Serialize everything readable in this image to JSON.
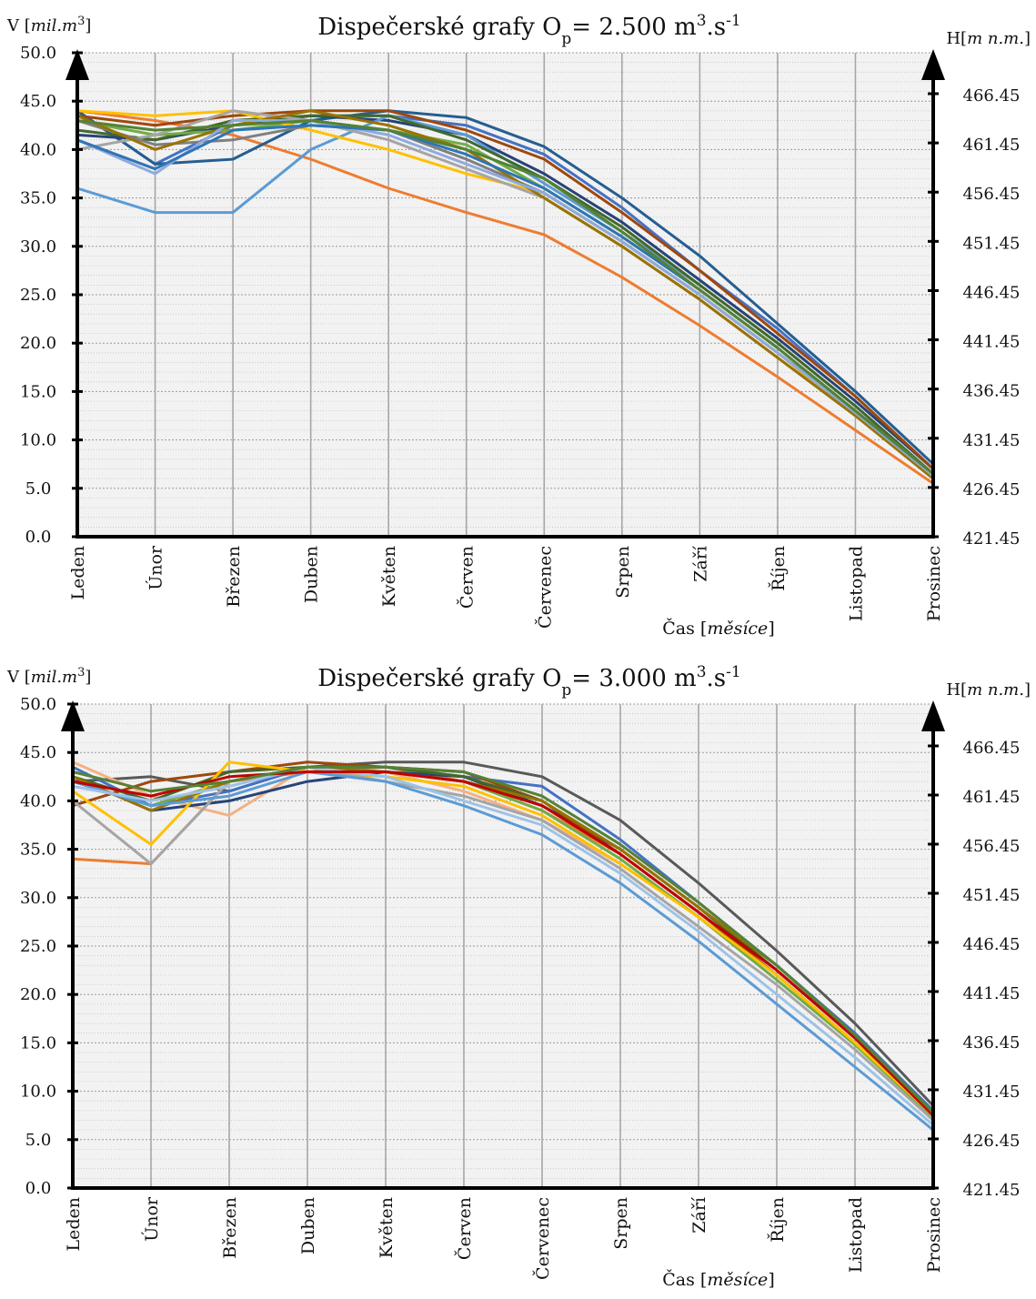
{
  "chart_data": [
    {
      "type": "line",
      "title": "Dispečerské grafy O",
      "title_subscript": "p",
      "title_suffix": "= 2.500 m",
      "title_sup1": "3",
      "title_unit2": ".s",
      "title_sup2": "-1",
      "ylabel_left": "V [",
      "ylabel_left_unit": "mil.m",
      "ylabel_left_sup": "3",
      "ylabel_left_close": "]",
      "ylabel_right": "H[",
      "ylabel_right_unit": "m n.m.",
      "ylabel_right_close": "]",
      "xlabel": "Čas [",
      "xlabel_unit": "měsíce",
      "xlabel_close": "]",
      "ylim": [
        0,
        50
      ],
      "yticks_left": [
        "0.0",
        "5.0",
        "10.0",
        "15.0",
        "20.0",
        "25.0",
        "30.0",
        "35.0",
        "40.0",
        "45.0",
        "50.0"
      ],
      "yticks_right": [
        "421.45",
        "426.45",
        "431.45",
        "436.45",
        "441.45",
        "446.45",
        "451.45",
        "456.45",
        "461.45",
        "466.45"
      ],
      "categories": [
        "Leden",
        "Únor",
        "Březen",
        "Duben",
        "Květen",
        "Červen",
        "Červenec",
        "Srpen",
        "Září",
        "Říjen",
        "Listopad",
        "Prosinec"
      ],
      "series": [
        {
          "color": "#ed7d31",
          "values": [
            44.0,
            43.0,
            41.5,
            39.0,
            36.0,
            33.5,
            31.2,
            26.8,
            21.8,
            16.5,
            11.0,
            5.5
          ]
        },
        {
          "color": "#4472c4",
          "values": [
            44.0,
            38.5,
            42.5,
            43.5,
            43.5,
            42.5,
            39.5,
            34.0,
            27.5,
            21.5,
            14.5,
            7.0
          ]
        },
        {
          "color": "#255e91",
          "values": [
            44.0,
            38.5,
            39.0,
            43.0,
            44.0,
            43.3,
            40.3,
            35.0,
            29.0,
            22.0,
            15.0,
            7.5
          ]
        },
        {
          "color": "#264478",
          "values": [
            41.5,
            41.0,
            42.5,
            43.5,
            43.0,
            41.5,
            37.5,
            32.5,
            26.5,
            20.5,
            14.0,
            7.0
          ]
        },
        {
          "color": "#5b9bd5",
          "values": [
            36.0,
            33.5,
            33.5,
            40.0,
            43.5,
            41.5,
            36.5,
            31.5,
            26.0,
            20.0,
            13.5,
            6.5
          ]
        },
        {
          "color": "#9e480e",
          "values": [
            43.5,
            42.5,
            43.5,
            44.0,
            44.0,
            42.0,
            39.0,
            33.5,
            27.5,
            21.0,
            14.5,
            7.0
          ]
        },
        {
          "color": "#43682b",
          "values": [
            42.0,
            41.0,
            43.0,
            43.5,
            43.5,
            41.0,
            37.0,
            32.0,
            26.0,
            20.0,
            13.5,
            6.5
          ]
        },
        {
          "color": "#70ad47",
          "values": [
            43.0,
            41.5,
            42.0,
            43.0,
            42.0,
            40.5,
            36.0,
            31.0,
            25.5,
            19.5,
            13.0,
            6.5
          ]
        },
        {
          "color": "#ffc000",
          "values": [
            44.0,
            43.5,
            44.0,
            42.0,
            40.0,
            37.5,
            35.5,
            30.5,
            25.0,
            19.0,
            12.5,
            6.5
          ]
        },
        {
          "color": "#a5a5a5",
          "values": [
            40.0,
            41.5,
            44.0,
            43.0,
            41.0,
            38.0,
            35.0,
            30.0,
            24.5,
            18.5,
            12.5,
            6.0
          ]
        },
        {
          "color": "#7f7f7f",
          "values": [
            43.0,
            40.5,
            41.0,
            42.5,
            42.0,
            39.0,
            35.5,
            30.5,
            25.0,
            19.0,
            13.0,
            6.5
          ]
        },
        {
          "color": "#997300",
          "values": [
            43.5,
            40.0,
            42.5,
            44.0,
            42.5,
            40.0,
            35.0,
            30.0,
            24.5,
            18.5,
            12.5,
            6.0
          ]
        },
        {
          "color": "#8faadc",
          "values": [
            41.0,
            37.5,
            43.0,
            43.0,
            41.5,
            38.5,
            35.5,
            30.5,
            25.0,
            19.0,
            12.8,
            6.3
          ]
        },
        {
          "color": "#2e75b6",
          "values": [
            41.0,
            38.0,
            42.0,
            42.5,
            42.0,
            39.5,
            36.0,
            31.0,
            25.5,
            19.5,
            13.0,
            6.5
          ]
        },
        {
          "color": "#548235",
          "values": [
            43.0,
            42.0,
            42.5,
            43.0,
            42.0,
            40.0,
            37.0,
            31.5,
            25.5,
            19.5,
            13.0,
            6.5
          ]
        }
      ]
    },
    {
      "type": "line",
      "title": "Dispečerské grafy O",
      "title_subscript": "p",
      "title_suffix": "= 3.000 m",
      "title_sup1": "3",
      "title_unit2": ".s",
      "title_sup2": "-1",
      "ylabel_left": "V [",
      "ylabel_left_unit": "mil.m",
      "ylabel_left_sup": "3",
      "ylabel_left_close": "]",
      "ylabel_right": "H[",
      "ylabel_right_unit": "m n.m.",
      "ylabel_right_close": "]",
      "xlabel": "Čas [",
      "xlabel_unit": "měsíce",
      "xlabel_close": "]",
      "ylim": [
        0,
        50
      ],
      "yticks_left": [
        "0.0",
        "5.0",
        "10.0",
        "15.0",
        "20.0",
        "25.0",
        "30.0",
        "35.0",
        "40.0",
        "45.0",
        "50.0"
      ],
      "yticks_right": [
        "421.45",
        "426.45",
        "431.45",
        "436.45",
        "441.45",
        "446.45",
        "451.45",
        "456.45",
        "461.45",
        "466.45"
      ],
      "categories": [
        "Leden",
        "Únor",
        "Březen",
        "Duben",
        "Květen",
        "Červen",
        "Červenec",
        "Srpen",
        "Září",
        "Říjen",
        "Listopad",
        "Prosinec"
      ],
      "series": [
        {
          "color": "#595959",
          "values": [
            42.0,
            42.5,
            41.0,
            43.5,
            44.0,
            44.0,
            42.5,
            38.0,
            31.5,
            24.5,
            17.0,
            8.5
          ]
        },
        {
          "color": "#ed7d31",
          "values": [
            34.0,
            33.5,
            42.0,
            43.0,
            43.5,
            42.0,
            39.0,
            34.5,
            28.5,
            22.0,
            15.0,
            7.5
          ]
        },
        {
          "color": "#f4b183",
          "values": [
            44.0,
            40.5,
            38.5,
            43.5,
            43.0,
            41.0,
            38.0,
            33.5,
            28.0,
            22.0,
            15.0,
            7.5
          ]
        },
        {
          "color": "#4472c4",
          "values": [
            43.5,
            39.5,
            41.0,
            43.5,
            43.5,
            42.5,
            41.5,
            36.0,
            29.5,
            23.0,
            16.0,
            8.0
          ]
        },
        {
          "color": "#264478",
          "values": [
            42.5,
            39.0,
            40.0,
            42.0,
            43.0,
            42.5,
            39.5,
            35.0,
            29.0,
            22.5,
            15.5,
            7.5
          ]
        },
        {
          "color": "#9e480e",
          "values": [
            39.5,
            42.0,
            43.0,
            44.0,
            43.5,
            43.0,
            40.0,
            34.5,
            28.5,
            22.0,
            15.0,
            7.5
          ]
        },
        {
          "color": "#43682b",
          "values": [
            42.5,
            40.0,
            43.0,
            43.5,
            43.5,
            42.5,
            40.0,
            35.0,
            29.0,
            22.5,
            15.5,
            7.5
          ]
        },
        {
          "color": "#70ad47",
          "values": [
            42.0,
            39.5,
            42.0,
            43.5,
            43.0,
            42.0,
            39.0,
            34.0,
            28.0,
            21.5,
            14.8,
            7.3
          ]
        },
        {
          "color": "#ffc000",
          "values": [
            41.0,
            35.5,
            44.0,
            43.0,
            42.5,
            41.5,
            38.5,
            33.5,
            28.0,
            22.0,
            15.0,
            7.5
          ]
        },
        {
          "color": "#a5a5a5",
          "values": [
            40.0,
            33.5,
            42.0,
            43.5,
            42.0,
            40.5,
            38.0,
            33.0,
            27.0,
            21.0,
            14.3,
            7.0
          ]
        },
        {
          "color": "#997300",
          "values": [
            42.5,
            39.0,
            42.0,
            43.5,
            43.0,
            42.0,
            40.0,
            35.0,
            29.0,
            23.0,
            15.8,
            7.8
          ]
        },
        {
          "color": "#5b9bd5",
          "values": [
            42.0,
            39.5,
            40.5,
            43.0,
            42.0,
            39.5,
            36.5,
            31.5,
            25.5,
            19.0,
            12.5,
            6.0
          ]
        },
        {
          "color": "#9dc3e6",
          "values": [
            41.5,
            40.0,
            41.5,
            43.5,
            42.5,
            40.0,
            37.5,
            32.5,
            26.5,
            20.0,
            13.5,
            6.5
          ]
        },
        {
          "color": "#c00000",
          "values": [
            42.0,
            40.5,
            42.5,
            43.0,
            43.0,
            42.0,
            39.5,
            34.5,
            28.5,
            22.5,
            15.5,
            7.5
          ]
        },
        {
          "color": "#548235",
          "values": [
            43.0,
            41.0,
            42.0,
            43.5,
            43.5,
            43.0,
            40.5,
            35.5,
            29.5,
            23.0,
            15.8,
            7.8
          ]
        }
      ]
    }
  ]
}
